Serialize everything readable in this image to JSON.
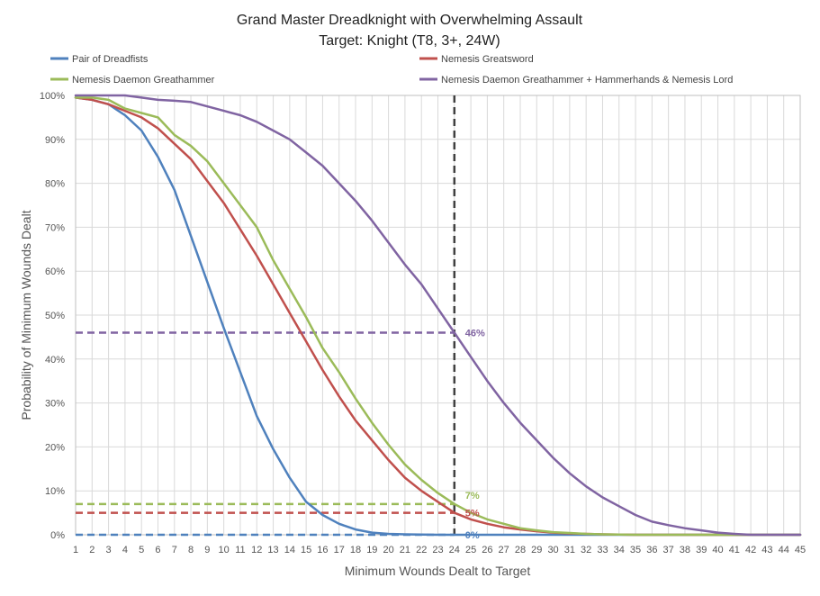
{
  "chart_data": {
    "type": "line",
    "title": "Grand Master Dreadknight with Overwhelming Assault",
    "subtitle": "Target: Knight (T8, 3+, 24W)",
    "xlabel": "Minimum Wounds Dealt  to Target",
    "ylabel": "Probability of Minimum Wounds Dealt",
    "x": [
      1,
      2,
      3,
      4,
      5,
      6,
      7,
      8,
      9,
      10,
      11,
      12,
      13,
      14,
      15,
      16,
      17,
      18,
      19,
      20,
      21,
      22,
      23,
      24,
      25,
      26,
      27,
      28,
      29,
      30,
      31,
      32,
      33,
      34,
      35,
      36,
      37,
      38,
      39,
      40,
      41,
      42,
      43,
      44,
      45
    ],
    "x_ticks": [
      "1",
      "2",
      "3",
      "4",
      "5",
      "6",
      "7",
      "8",
      "9",
      "10",
      "11",
      "12",
      "13",
      "14",
      "15",
      "16",
      "17",
      "18",
      "19",
      "20",
      "21",
      "22",
      "23",
      "24",
      "25",
      "26",
      "27",
      "28",
      "29",
      "30",
      "31",
      "32",
      "33",
      "34",
      "35",
      "36",
      "37",
      "38",
      "39",
      "40",
      "41",
      "42",
      "43",
      "44",
      "45"
    ],
    "xlim": [
      1,
      45
    ],
    "ylim": [
      0,
      100
    ],
    "y_ticks": [
      "0%",
      "10%",
      "20%",
      "30%",
      "40%",
      "50%",
      "60%",
      "70%",
      "80%",
      "90%",
      "100%"
    ],
    "grid": true,
    "legend_position": "top",
    "series": [
      {
        "name": "Pair of Dreadfists",
        "color": "#4F81BD",
        "values": [
          99.5,
          99,
          98,
          95.5,
          92,
          86,
          78.5,
          68,
          57.5,
          47,
          37,
          27,
          19.5,
          13,
          7.5,
          4.5,
          2.5,
          1.2,
          0.5,
          0.2,
          0.1,
          0.05,
          0,
          0,
          0,
          0,
          0,
          0,
          0,
          0,
          0,
          0,
          0,
          0,
          0,
          0,
          0,
          0,
          0,
          0,
          0,
          0,
          0,
          0,
          0
        ]
      },
      {
        "name": "Nemesis Greatsword",
        "color": "#C0504D",
        "values": [
          99.5,
          99,
          98,
          96.5,
          95,
          92.5,
          89,
          85.5,
          80.5,
          75.5,
          69.5,
          63.5,
          57,
          50.5,
          44,
          37.5,
          31.5,
          26,
          21.5,
          17,
          13,
          10,
          7.5,
          5,
          3.5,
          2.5,
          1.7,
          1.2,
          0.8,
          0.5,
          0.3,
          0.2,
          0.1,
          0.05,
          0,
          0,
          0,
          0,
          0,
          0,
          0,
          0,
          0,
          0,
          0
        ]
      },
      {
        "name": "Nemesis Daemon Greathammer",
        "color": "#9BBB59",
        "values": [
          99.5,
          99.5,
          99,
          97,
          96,
          95,
          91,
          88.5,
          85,
          80,
          75,
          70,
          62.5,
          56,
          49.5,
          42.5,
          37,
          31,
          25.5,
          20.5,
          16,
          12.5,
          9.5,
          7,
          5,
          3.5,
          2.5,
          1.5,
          1,
          0.6,
          0.4,
          0.2,
          0.1,
          0.05,
          0,
          0,
          0,
          0,
          0,
          0,
          0,
          0,
          0,
          0,
          0
        ]
      },
      {
        "name": "Nemesis Daemon Greathammer + Hammerhands & Nemesis Lord",
        "color": "#8064A2",
        "values": [
          100,
          100,
          100,
          100,
          99.5,
          99,
          98.8,
          98.5,
          97.5,
          96.5,
          95.5,
          94,
          92,
          90,
          87,
          84,
          80,
          76,
          71.5,
          66.5,
          61.5,
          57,
          51.5,
          46,
          40.5,
          35,
          30,
          25.5,
          21.5,
          17.5,
          14,
          11,
          8.5,
          6.5,
          4.5,
          3,
          2.2,
          1.5,
          1,
          0.5,
          0.2,
          0,
          0,
          0,
          0
        ]
      }
    ],
    "reference_lines": [
      {
        "type": "vertical",
        "x": 24,
        "color": "#404040"
      },
      {
        "type": "horizontal",
        "y": 46,
        "color": "#8064A2",
        "label": "46%"
      },
      {
        "type": "horizontal",
        "y": 7,
        "color": "#9BBB59",
        "label": "7%"
      },
      {
        "type": "horizontal",
        "y": 5,
        "color": "#C0504D",
        "label": "5%"
      },
      {
        "type": "horizontal",
        "y": 0,
        "color": "#4F81BD",
        "label": "0%"
      }
    ]
  }
}
